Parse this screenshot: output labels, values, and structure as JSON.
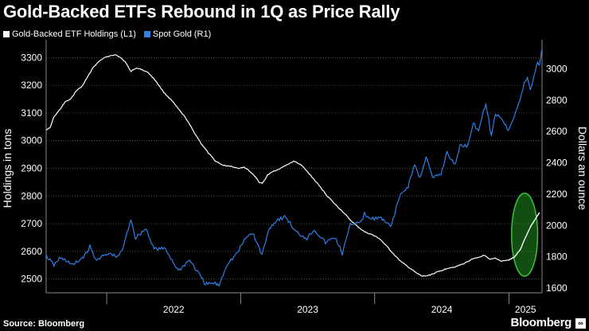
{
  "header": {
    "title": "Gold-Backed ETFs Rebound in 1Q as Price Rally"
  },
  "footer": {
    "source": "Source: Bloomberg",
    "brand": "Bloomberg"
  },
  "colors": {
    "background": "#000000",
    "etf": "#ffffff",
    "gold": "#2f7fe6",
    "highlight": "#3fbf3f",
    "grid": "#666666"
  },
  "chart_data": {
    "type": "line",
    "title": "Gold-Backed ETFs Rebound in 1Q as Price Rally",
    "x_ticks": [
      "2022",
      "2023",
      "2024",
      "2025"
    ],
    "x_range": [
      "2021-07-20",
      "2025-04-01"
    ],
    "grid": true,
    "legend_position": "top-left",
    "y_left": {
      "label": "Holdings in tons",
      "range": [
        2450,
        3350
      ],
      "ticks": [
        2500,
        2600,
        2700,
        2800,
        2900,
        3000,
        3100,
        3200,
        3300
      ]
    },
    "y_right": {
      "label": "Dollars an ounce",
      "range": [
        1570,
        3160
      ],
      "ticks": [
        1600,
        1800,
        2000,
        2200,
        2400,
        2600,
        2800,
        3000
      ]
    },
    "annotations": [
      {
        "type": "ellipse",
        "note": "highlight of 2025 holdings rebound",
        "x_range": [
          "2025-01-08",
          "2025-03-20"
        ],
        "y_range": [
          2510,
          2810
        ]
      }
    ],
    "series": [
      {
        "name": "Gold-Backed ETF Holdings (L1)",
        "axis": "left",
        "color": "#ffffff",
        "points": [
          [
            "2021-07-20",
            3040
          ],
          [
            "2021-07-30",
            3045
          ],
          [
            "2021-08-10",
            3085
          ],
          [
            "2021-08-25",
            3110
          ],
          [
            "2021-09-10",
            3140
          ],
          [
            "2021-09-25",
            3150
          ],
          [
            "2021-10-10",
            3180
          ],
          [
            "2021-10-25",
            3195
          ],
          [
            "2021-11-10",
            3230
          ],
          [
            "2021-11-25",
            3265
          ],
          [
            "2021-12-10",
            3285
          ],
          [
            "2021-12-25",
            3300
          ],
          [
            "2022-01-10",
            3305
          ],
          [
            "2022-01-25",
            3312
          ],
          [
            "2022-02-08",
            3300
          ],
          [
            "2022-02-20",
            3285
          ],
          [
            "2022-03-01",
            3265
          ],
          [
            "2022-03-08",
            3250
          ],
          [
            "2022-03-20",
            3262
          ],
          [
            "2022-04-05",
            3258
          ],
          [
            "2022-04-25",
            3245
          ],
          [
            "2022-05-15",
            3215
          ],
          [
            "2022-06-05",
            3175
          ],
          [
            "2022-06-25",
            3148
          ],
          [
            "2022-07-15",
            3115
          ],
          [
            "2022-08-05",
            3080
          ],
          [
            "2022-08-25",
            3035
          ],
          [
            "2022-09-15",
            2990
          ],
          [
            "2022-10-05",
            2955
          ],
          [
            "2022-10-25",
            2925
          ],
          [
            "2022-11-15",
            2910
          ],
          [
            "2022-12-05",
            2908
          ],
          [
            "2022-12-25",
            2900
          ],
          [
            "2023-01-10",
            2905
          ],
          [
            "2023-01-25",
            2890
          ],
          [
            "2023-02-10",
            2870
          ],
          [
            "2023-02-20",
            2850
          ],
          [
            "2023-03-01",
            2845
          ],
          [
            "2023-03-15",
            2875
          ],
          [
            "2023-04-01",
            2890
          ],
          [
            "2023-04-20",
            2900
          ],
          [
            "2023-05-10",
            2915
          ],
          [
            "2023-05-25",
            2925
          ],
          [
            "2023-06-05",
            2920
          ],
          [
            "2023-06-20",
            2905
          ],
          [
            "2023-07-10",
            2875
          ],
          [
            "2023-08-01",
            2840
          ],
          [
            "2023-08-25",
            2800
          ],
          [
            "2023-09-15",
            2770
          ],
          [
            "2023-10-05",
            2745
          ],
          [
            "2023-10-25",
            2715
          ],
          [
            "2023-11-15",
            2690
          ],
          [
            "2023-12-05",
            2670
          ],
          [
            "2023-12-25",
            2660
          ],
          [
            "2024-01-15",
            2645
          ],
          [
            "2024-02-05",
            2615
          ],
          [
            "2024-02-25",
            2585
          ],
          [
            "2024-03-15",
            2560
          ],
          [
            "2024-04-05",
            2540
          ],
          [
            "2024-04-25",
            2520
          ],
          [
            "2024-05-10",
            2510
          ],
          [
            "2024-05-25",
            2512
          ],
          [
            "2024-06-10",
            2520
          ],
          [
            "2024-06-30",
            2530
          ],
          [
            "2024-07-20",
            2540
          ],
          [
            "2024-08-10",
            2545
          ],
          [
            "2024-08-30",
            2555
          ],
          [
            "2024-09-20",
            2570
          ],
          [
            "2024-10-10",
            2578
          ],
          [
            "2024-10-25",
            2585
          ],
          [
            "2024-11-10",
            2570
          ],
          [
            "2024-11-25",
            2575
          ],
          [
            "2024-12-10",
            2565
          ],
          [
            "2024-12-31",
            2568
          ],
          [
            "2025-01-15",
            2578
          ],
          [
            "2025-01-31",
            2605
          ],
          [
            "2025-02-15",
            2650
          ],
          [
            "2025-03-01",
            2690
          ],
          [
            "2025-03-15",
            2720
          ],
          [
            "2025-03-25",
            2740
          ]
        ]
      },
      {
        "name": "Spot Gold (R1)",
        "axis": "right",
        "color": "#2f7fe6",
        "points": [
          [
            "2021-07-20",
            1808
          ],
          [
            "2021-08-10",
            1745
          ],
          [
            "2021-08-25",
            1790
          ],
          [
            "2021-09-15",
            1775
          ],
          [
            "2021-09-30",
            1745
          ],
          [
            "2021-10-20",
            1780
          ],
          [
            "2021-11-05",
            1818
          ],
          [
            "2021-11-16",
            1865
          ],
          [
            "2021-12-01",
            1785
          ],
          [
            "2021-12-20",
            1800
          ],
          [
            "2022-01-10",
            1820
          ],
          [
            "2022-01-31",
            1795
          ],
          [
            "2022-02-15",
            1860
          ],
          [
            "2022-03-08",
            2043
          ],
          [
            "2022-03-20",
            1920
          ],
          [
            "2022-04-18",
            1980
          ],
          [
            "2022-05-10",
            1850
          ],
          [
            "2022-06-10",
            1850
          ],
          [
            "2022-07-15",
            1710
          ],
          [
            "2022-08-15",
            1780
          ],
          [
            "2022-09-27",
            1625
          ],
          [
            "2022-10-20",
            1630
          ],
          [
            "2022-11-03",
            1618
          ],
          [
            "2022-11-25",
            1755
          ],
          [
            "2022-12-20",
            1815
          ],
          [
            "2023-01-15",
            1920
          ],
          [
            "2023-02-02",
            1955
          ],
          [
            "2023-02-28",
            1812
          ],
          [
            "2023-03-20",
            1985
          ],
          [
            "2023-04-13",
            2040
          ],
          [
            "2023-05-04",
            2055
          ],
          [
            "2023-05-30",
            1960
          ],
          [
            "2023-06-30",
            1918
          ],
          [
            "2023-07-20",
            1975
          ],
          [
            "2023-08-20",
            1890
          ],
          [
            "2023-09-15",
            1925
          ],
          [
            "2023-10-05",
            1820
          ],
          [
            "2023-10-27",
            2005
          ],
          [
            "2023-11-30",
            2035
          ],
          [
            "2023-12-04",
            2075
          ],
          [
            "2023-12-20",
            2040
          ],
          [
            "2024-01-15",
            2050
          ],
          [
            "2024-02-14",
            1990
          ],
          [
            "2024-03-08",
            2180
          ],
          [
            "2024-04-01",
            2250
          ],
          [
            "2024-04-19",
            2390
          ],
          [
            "2024-05-03",
            2300
          ],
          [
            "2024-05-20",
            2440
          ],
          [
            "2024-06-07",
            2300
          ],
          [
            "2024-06-30",
            2330
          ],
          [
            "2024-07-16",
            2470
          ],
          [
            "2024-08-07",
            2380
          ],
          [
            "2024-08-20",
            2510
          ],
          [
            "2024-09-10",
            2510
          ],
          [
            "2024-09-25",
            2650
          ],
          [
            "2024-10-10",
            2610
          ],
          [
            "2024-10-30",
            2785
          ],
          [
            "2024-11-14",
            2565
          ],
          [
            "2024-11-25",
            2715
          ],
          [
            "2024-12-10",
            2690
          ],
          [
            "2024-12-30",
            2610
          ],
          [
            "2025-01-15",
            2700
          ],
          [
            "2025-01-31",
            2800
          ],
          [
            "2025-02-11",
            2900
          ],
          [
            "2025-02-20",
            2950
          ],
          [
            "2025-02-28",
            2860
          ],
          [
            "2025-03-14",
            2990
          ],
          [
            "2025-03-20",
            3050
          ],
          [
            "2025-03-25",
            3020
          ],
          [
            "2025-03-31",
            3120
          ]
        ]
      }
    ]
  }
}
